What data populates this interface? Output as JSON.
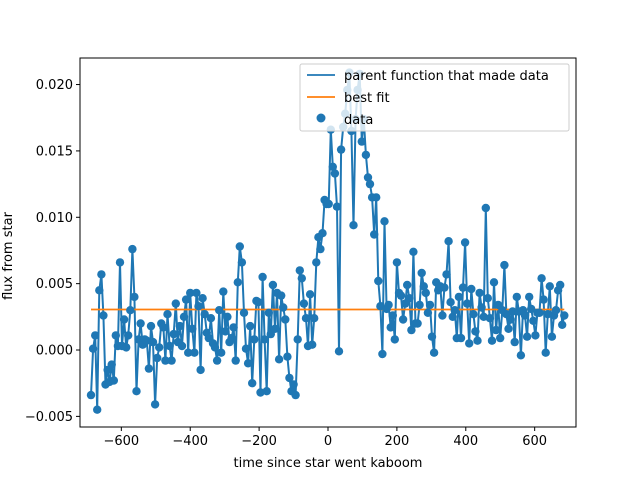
{
  "chart_data": {
    "type": "line",
    "title": "",
    "xlabel": "time since star went kaboom",
    "ylabel": "flux from star",
    "xlim": [
      -720,
      720
    ],
    "ylim": [
      -0.0058,
      0.022
    ],
    "xticks": [
      -600,
      -400,
      -200,
      0,
      200,
      400,
      600
    ],
    "xtick_labels": [
      "−600",
      "−400",
      "−200",
      "0",
      "200",
      "400",
      "600"
    ],
    "yticks": [
      -0.005,
      0.0,
      0.005,
      0.01,
      0.015,
      0.02
    ],
    "ytick_labels": [
      "−0.005",
      "0.000",
      "0.005",
      "0.010",
      "0.015",
      "0.020"
    ],
    "grid": false,
    "legend_position": "top-right",
    "series": [
      {
        "name": "parent function that made data",
        "kind": "line",
        "color": "#1f77b4",
        "x": [
          -688,
          -682,
          -676,
          -670,
          -664,
          -658,
          -652,
          -646,
          -640,
          -634,
          -628,
          -622,
          -616,
          -610,
          -604,
          -598,
          -592,
          -586,
          -580,
          -574,
          -568,
          -562,
          -556,
          -550,
          -544,
          -538,
          -532,
          -526,
          -520,
          -514,
          -508,
          -502,
          -496,
          -490,
          -484,
          -478,
          -472,
          -466,
          -460,
          -454,
          -448,
          -442,
          -436,
          -430,
          -424,
          -418,
          -412,
          -406,
          -400,
          -394,
          -388,
          -382,
          -376,
          -370,
          -364,
          -358,
          -352,
          -346,
          -340,
          -334,
          -328,
          -322,
          -316,
          -310,
          -304,
          -298,
          -292,
          -286,
          -280,
          -274,
          -268,
          -262,
          -256,
          -250,
          -244,
          -238,
          -232,
          -226,
          -220,
          -214,
          -208,
          -202,
          -196,
          -190,
          -184,
          -178,
          -172,
          -166,
          -160,
          -154,
          -148,
          -142,
          -136,
          -130,
          -124,
          -118,
          -112,
          -106,
          -100,
          -94,
          -88,
          -82,
          -76,
          -70,
          -64,
          -58,
          -52,
          -46,
          -40,
          -34,
          -28,
          -22,
          -16,
          -10,
          -4,
          2,
          8,
          14,
          20,
          26,
          32,
          38,
          44,
          50,
          56,
          62,
          68,
          74,
          80,
          86,
          92,
          98,
          104,
          110,
          116,
          122,
          128,
          134,
          140,
          146,
          152,
          158,
          164,
          170,
          176,
          182,
          188,
          194,
          200,
          206,
          212,
          218,
          224,
          230,
          236,
          242,
          248,
          254,
          260,
          266,
          272,
          278,
          284,
          290,
          296,
          302,
          308,
          314,
          320,
          326,
          332,
          338,
          344,
          350,
          356,
          362,
          368,
          374,
          380,
          386,
          392,
          398,
          404,
          410,
          416,
          422,
          428,
          434,
          440,
          446,
          452,
          458,
          464,
          470,
          476,
          482,
          488,
          494,
          500,
          506,
          512,
          518,
          524,
          530,
          536,
          542,
          548,
          554,
          560,
          566,
          572,
          578,
          584,
          590,
          596,
          602,
          608,
          614,
          620,
          626,
          632,
          638,
          644,
          650,
          656,
          662,
          668,
          674,
          680,
          686
        ],
        "y": [
          -0.0034,
          0.0001,
          0.0011,
          -0.0045,
          0.0045,
          0.0057,
          0.0026,
          -0.0026,
          -0.0015,
          -0.0024,
          -0.0011,
          -0.0023,
          0.0011,
          0.0003,
          0.0066,
          0.0003,
          0.0023,
          0.0002,
          0.0011,
          0.003,
          0.0076,
          0.004,
          -0.0031,
          0.0008,
          0.002,
          0.0004,
          0.0008,
          0.0007,
          -0.0014,
          0.0018,
          0.0006,
          -0.0041,
          -0.0006,
          0.0002,
          0.002,
          0.0017,
          -0.0008,
          0.0027,
          0.0003,
          -0.0008,
          0.0012,
          0.0035,
          0.0006,
          0.0018,
          0.0003,
          0.0025,
          0.0038,
          -0.0002,
          0.0043,
          0.0016,
          -0.0002,
          0.0043,
          0.0033,
          -0.0015,
          0.0039,
          0.0027,
          0.0013,
          0.0009,
          0.0024,
          0.0005,
          0.0002,
          -0.0008,
          0.003,
          -0.0002,
          0.0044,
          0.0014,
          0.0025,
          0.0006,
          0.0009,
          0.0017,
          -0.0008,
          0.0051,
          0.0078,
          0.0066,
          0.0028,
          0.0001,
          -0.001,
          0.0018,
          -0.0025,
          0.0008,
          0.0037,
          0.0036,
          -0.0032,
          0.0055,
          0.0008,
          -0.0031,
          0.0028,
          0.0012,
          0.0049,
          0.0016,
          0.0043,
          -0.0007,
          0.0041,
          0.0032,
          0.0023,
          -0.0005,
          -0.0021,
          -0.0031,
          -0.0026,
          -0.0034,
          0.0008,
          0.006,
          0.0054,
          0.0035,
          0.0024,
          0.0003,
          0.0042,
          0.0004,
          0.0024,
          0.0066,
          0.0085,
          0.0076,
          0.0088,
          0.0113,
          0.011,
          0.011,
          0.0166,
          0.0138,
          0.0133,
          0.0108,
          -0.0001,
          0.0151,
          0.0168,
          0.0178,
          0.0196,
          0.0209,
          0.0165,
          0.0094,
          0.0174,
          0.0196,
          0.0208,
          0.0157,
          0.0174,
          0.0147,
          0.013,
          0.0125,
          0.0115,
          0.0087,
          0.0115,
          0.0052,
          0.0033,
          -0.0003,
          0.0097,
          0.0031,
          0.0034,
          0.0017,
          0.0026,
          0.0008,
          0.0066,
          0.0043,
          0.0041,
          0.0023,
          0.0035,
          0.0049,
          0.0039,
          0.0015,
          0.0074,
          0.002,
          0.002,
          0.0034,
          0.0058,
          0.0048,
          0.0043,
          0.0028,
          0.0034,
          0.001,
          -0.0002,
          0.0051,
          0.0045,
          0.0048,
          0.0026,
          0.0047,
          0.0057,
          0.0082,
          0.0036,
          0.0025,
          0.003,
          0.0009,
          0.004,
          0.0009,
          0.0047,
          0.0081,
          0.0035,
          0.0005,
          0.0046,
          0.0027,
          0.0014,
          0.0007,
          0.0043,
          0.0032,
          0.0025,
          0.0107,
          0.0039,
          0.0024,
          0.0007,
          0.0051,
          0.0015,
          0.0034,
          0.0009,
          0.003,
          0.0064,
          0.0027,
          0.0016,
          0.0023,
          0.0029,
          0.0006,
          0.004,
          0.0029,
          -0.0004,
          0.003,
          0.0026,
          0.001,
          0.004,
          0.0031,
          0.0022,
          0.0011,
          0.0028,
          0.0028,
          0.0054,
          0.0038,
          -0.0002,
          0.0027,
          0.0048,
          0.001,
          0.0026,
          0.003,
          0.0045,
          0.0049,
          0.0019,
          0.0026
        ]
      },
      {
        "name": "best fit",
        "kind": "line",
        "color": "#ff7f0e",
        "x": [
          -688,
          686
        ],
        "y": [
          0.00305,
          0.00305
        ]
      },
      {
        "name": "data",
        "kind": "scatter",
        "color": "#1f77b4",
        "same_as_series": 0
      }
    ]
  }
}
